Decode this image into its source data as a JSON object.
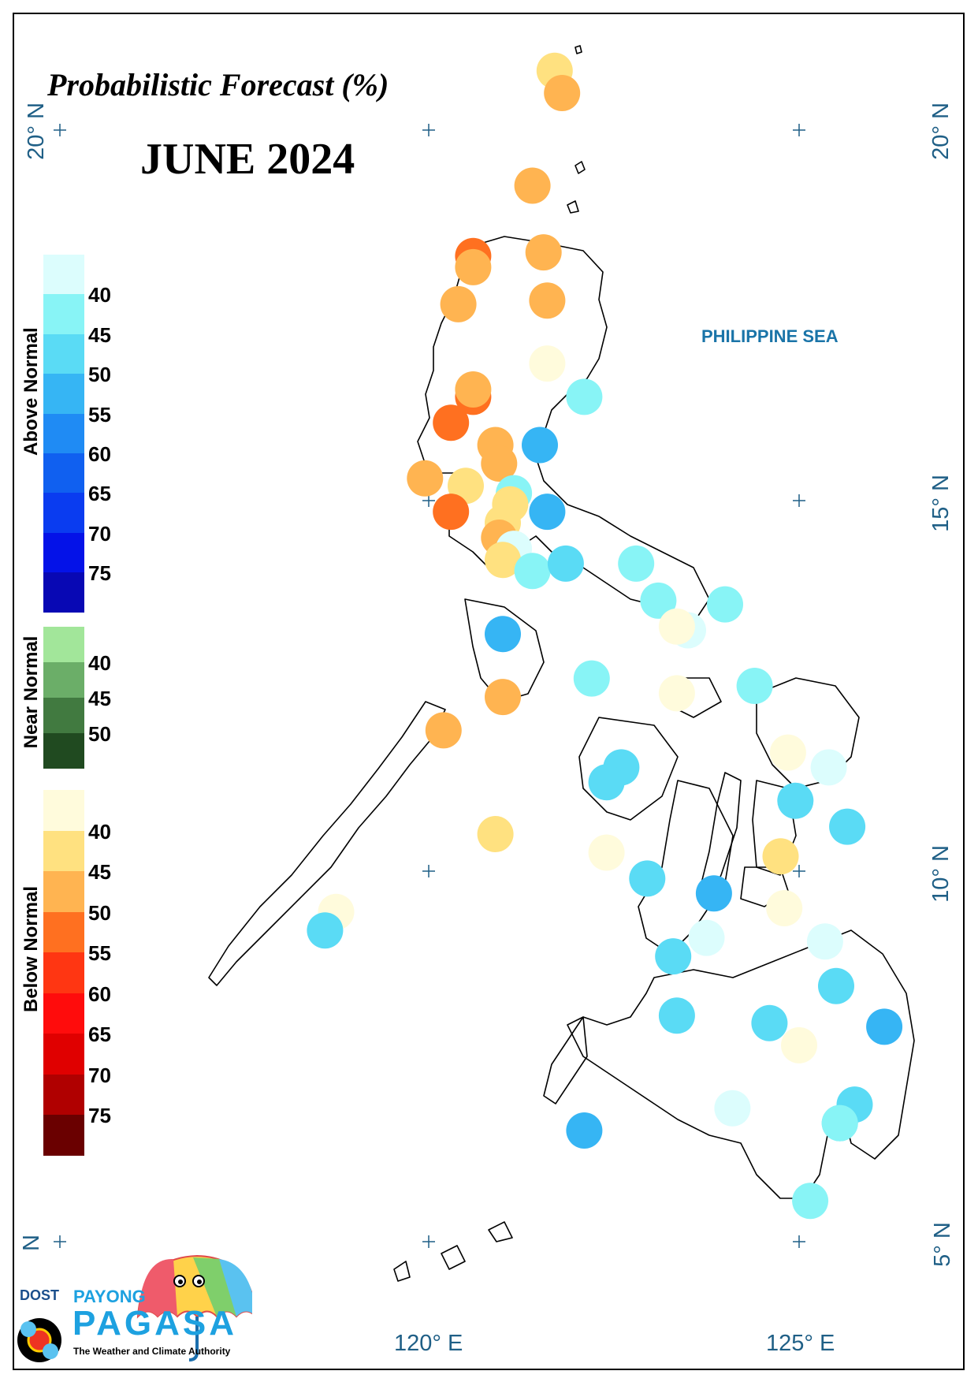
{
  "title": "Probabilistic Forecast (%)",
  "month": "JUNE 2024",
  "sea_label": "PHILIPPINE SEA",
  "axes": {
    "x_labels": [
      "120° E",
      "125° E"
    ],
    "y_labels_left": [
      "20° N",
      "N"
    ],
    "y_labels_right": [
      "20° N",
      "15° N",
      "10° N",
      "5° N"
    ]
  },
  "legend": {
    "above_normal": {
      "label": "Above Normal",
      "ticks": [
        "40",
        "45",
        "50",
        "55",
        "60",
        "65",
        "70",
        "75"
      ],
      "colors": [
        "#dcfdfd",
        "#88f4f6",
        "#5adbf5",
        "#36b5f4",
        "#1f8bf4",
        "#1060f0",
        "#0a3cf0",
        "#0412e8",
        "#0808b4"
      ]
    },
    "near_normal": {
      "label": "Near Normal",
      "ticks": [
        "40",
        "45",
        "50"
      ],
      "colors": [
        "#a2e69a",
        "#6bae68",
        "#417a40",
        "#204a20"
      ]
    },
    "below_normal": {
      "label": "Below Normal",
      "ticks": [
        "40",
        "45",
        "50",
        "55",
        "60",
        "65",
        "70",
        "75"
      ],
      "colors": [
        "#fffbdc",
        "#ffe180",
        "#ffb451",
        "#ff7020",
        "#ff3612",
        "#ff0c0c",
        "#e00000",
        "#b00000",
        "#6a0000"
      ]
    }
  },
  "stations": [
    {
      "lon": 121.7,
      "lat": 20.8,
      "category": "below",
      "level": "#ffe180"
    },
    {
      "lon": 121.8,
      "lat": 20.5,
      "category": "below",
      "level": "#ffb451"
    },
    {
      "lon": 121.4,
      "lat": 19.25,
      "category": "below",
      "level": "#ffb451"
    },
    {
      "lon": 120.6,
      "lat": 18.3,
      "category": "below",
      "level": "#ff7020"
    },
    {
      "lon": 120.6,
      "lat": 18.15,
      "category": "below",
      "level": "#ffb451"
    },
    {
      "lon": 121.55,
      "lat": 18.35,
      "category": "below",
      "level": "#ffb451"
    },
    {
      "lon": 120.4,
      "lat": 17.65,
      "category": "below",
      "level": "#ffb451"
    },
    {
      "lon": 121.6,
      "lat": 17.7,
      "category": "below",
      "level": "#ffb451"
    },
    {
      "lon": 121.6,
      "lat": 16.85,
      "category": "below",
      "level": "#fffbdc"
    },
    {
      "lon": 120.6,
      "lat": 16.4,
      "category": "below",
      "level": "#ff7020"
    },
    {
      "lon": 120.6,
      "lat": 16.5,
      "category": "below",
      "level": "#ffb451"
    },
    {
      "lon": 122.1,
      "lat": 16.4,
      "category": "above",
      "level": "#88f4f6"
    },
    {
      "lon": 120.3,
      "lat": 16.05,
      "category": "below",
      "level": "#ff7020"
    },
    {
      "lon": 120.9,
      "lat": 15.75,
      "category": "below",
      "level": "#ffb451"
    },
    {
      "lon": 120.95,
      "lat": 15.5,
      "category": "below",
      "level": "#ffb451"
    },
    {
      "lon": 121.5,
      "lat": 15.75,
      "category": "above",
      "level": "#36b5f4"
    },
    {
      "lon": 119.95,
      "lat": 15.3,
      "category": "below",
      "level": "#ffb451"
    },
    {
      "lon": 120.5,
      "lat": 15.2,
      "category": "below",
      "level": "#ffe180"
    },
    {
      "lon": 121.15,
      "lat": 15.1,
      "category": "above",
      "level": "#88f4f6"
    },
    {
      "lon": 121.1,
      "lat": 14.95,
      "category": "below",
      "level": "#ffe180"
    },
    {
      "lon": 120.3,
      "lat": 14.85,
      "category": "below",
      "level": "#ff7020"
    },
    {
      "lon": 121.6,
      "lat": 14.85,
      "category": "above",
      "level": "#36b5f4"
    },
    {
      "lon": 121.0,
      "lat": 14.7,
      "category": "below",
      "level": "#ffe180"
    },
    {
      "lon": 120.95,
      "lat": 14.5,
      "category": "below",
      "level": "#ffb451"
    },
    {
      "lon": 121.15,
      "lat": 14.35,
      "category": "above",
      "level": "#dcfdfd"
    },
    {
      "lon": 121.0,
      "lat": 14.2,
      "category": "below",
      "level": "#ffe180"
    },
    {
      "lon": 121.4,
      "lat": 14.05,
      "category": "above",
      "level": "#88f4f6"
    },
    {
      "lon": 121.85,
      "lat": 14.15,
      "category": "above",
      "level": "#5adbf5"
    },
    {
      "lon": 122.8,
      "lat": 14.15,
      "category": "above",
      "level": "#88f4f6"
    },
    {
      "lon": 123.1,
      "lat": 13.65,
      "category": "above",
      "level": "#88f4f6"
    },
    {
      "lon": 124.0,
      "lat": 13.6,
      "category": "above",
      "level": "#88f4f6"
    },
    {
      "lon": 123.5,
      "lat": 13.25,
      "category": "above",
      "level": "#dcfdfd"
    },
    {
      "lon": 123.35,
      "lat": 13.3,
      "category": "below",
      "level": "#fffbdc"
    },
    {
      "lon": 121.0,
      "lat": 13.2,
      "category": "above",
      "level": "#36b5f4"
    },
    {
      "lon": 122.2,
      "lat": 12.6,
      "category": "above",
      "level": "#88f4f6"
    },
    {
      "lon": 123.35,
      "lat": 12.4,
      "category": "below",
      "level": "#fffbdc"
    },
    {
      "lon": 124.4,
      "lat": 12.5,
      "category": "above",
      "level": "#88f4f6"
    },
    {
      "lon": 121.0,
      "lat": 12.35,
      "category": "below",
      "level": "#ffb451"
    },
    {
      "lon": 120.2,
      "lat": 11.9,
      "category": "below",
      "level": "#ffb451"
    },
    {
      "lon": 124.85,
      "lat": 11.6,
      "category": "below",
      "level": "#fffbdc"
    },
    {
      "lon": 125.4,
      "lat": 11.4,
      "category": "above",
      "level": "#dcfdfd"
    },
    {
      "lon": 122.6,
      "lat": 11.4,
      "category": "above",
      "level": "#5adbf5"
    },
    {
      "lon": 122.4,
      "lat": 11.2,
      "category": "above",
      "level": "#5adbf5"
    },
    {
      "lon": 124.95,
      "lat": 10.95,
      "category": "above",
      "level": "#5adbf5"
    },
    {
      "lon": 125.65,
      "lat": 10.6,
      "category": "above",
      "level": "#5adbf5"
    },
    {
      "lon": 120.9,
      "lat": 10.5,
      "category": "below",
      "level": "#ffe180"
    },
    {
      "lon": 122.4,
      "lat": 10.25,
      "category": "below",
      "level": "#fffbdc"
    },
    {
      "lon": 124.75,
      "lat": 10.2,
      "category": "below",
      "level": "#ffe180"
    },
    {
      "lon": 122.95,
      "lat": 9.9,
      "category": "above",
      "level": "#5adbf5"
    },
    {
      "lon": 123.85,
      "lat": 9.7,
      "category": "above",
      "level": "#36b5f4"
    },
    {
      "lon": 124.8,
      "lat": 9.5,
      "category": "below",
      "level": "#fffbdc"
    },
    {
      "lon": 118.75,
      "lat": 9.45,
      "category": "below",
      "level": "#fffbdc"
    },
    {
      "lon": 118.6,
      "lat": 9.2,
      "category": "above",
      "level": "#5adbf5"
    },
    {
      "lon": 123.75,
      "lat": 9.1,
      "category": "above",
      "level": "#dcfdfd"
    },
    {
      "lon": 125.35,
      "lat": 9.05,
      "category": "above",
      "level": "#dcfdfd"
    },
    {
      "lon": 123.3,
      "lat": 8.85,
      "category": "above",
      "level": "#5adbf5"
    },
    {
      "lon": 125.5,
      "lat": 8.45,
      "category": "above",
      "level": "#5adbf5"
    },
    {
      "lon": 123.35,
      "lat": 8.05,
      "category": "above",
      "level": "#5adbf5"
    },
    {
      "lon": 124.6,
      "lat": 7.95,
      "category": "above",
      "level": "#5adbf5"
    },
    {
      "lon": 126.15,
      "lat": 7.9,
      "category": "above",
      "level": "#36b5f4"
    },
    {
      "lon": 125.0,
      "lat": 7.65,
      "category": "below",
      "level": "#fffbdc"
    },
    {
      "lon": 124.1,
      "lat": 6.8,
      "category": "above",
      "level": "#dcfdfd"
    },
    {
      "lon": 125.75,
      "lat": 6.85,
      "category": "above",
      "level": "#5adbf5"
    },
    {
      "lon": 125.55,
      "lat": 6.6,
      "category": "above",
      "level": "#5adbf5"
    },
    {
      "lon": 125.55,
      "lat": 6.6,
      "category": "above",
      "level": "#88f4f6"
    },
    {
      "lon": 122.1,
      "lat": 6.5,
      "category": "above",
      "level": "#36b5f4"
    },
    {
      "lon": 125.15,
      "lat": 5.55,
      "category": "above",
      "level": "#88f4f6"
    }
  ],
  "logo": {
    "org": "DOST",
    "line1": "PAYONG",
    "line2": "PAGASA",
    "tagline": "The Weather and Climate Authority"
  }
}
